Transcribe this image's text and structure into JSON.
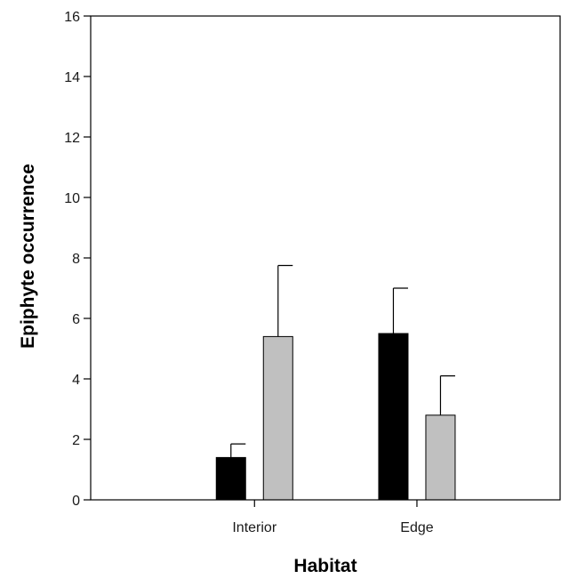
{
  "chart_data": {
    "type": "bar",
    "title": "",
    "xlabel": "Habitat",
    "ylabel": "Epiphyte occurrence",
    "ylim": [
      0,
      16
    ],
    "yticks": [
      0,
      2,
      4,
      6,
      8,
      10,
      12,
      14,
      16
    ],
    "categories": [
      "Interior",
      "Edge"
    ],
    "series": [
      {
        "color": "#000000",
        "values": [
          1.4,
          5.5
        ],
        "errors": [
          0.45,
          1.5
        ]
      },
      {
        "color": "#c0c0c0",
        "values": [
          5.4,
          2.8
        ],
        "errors": [
          2.35,
          1.3
        ]
      }
    ],
    "grid": false,
    "legend": "none"
  }
}
